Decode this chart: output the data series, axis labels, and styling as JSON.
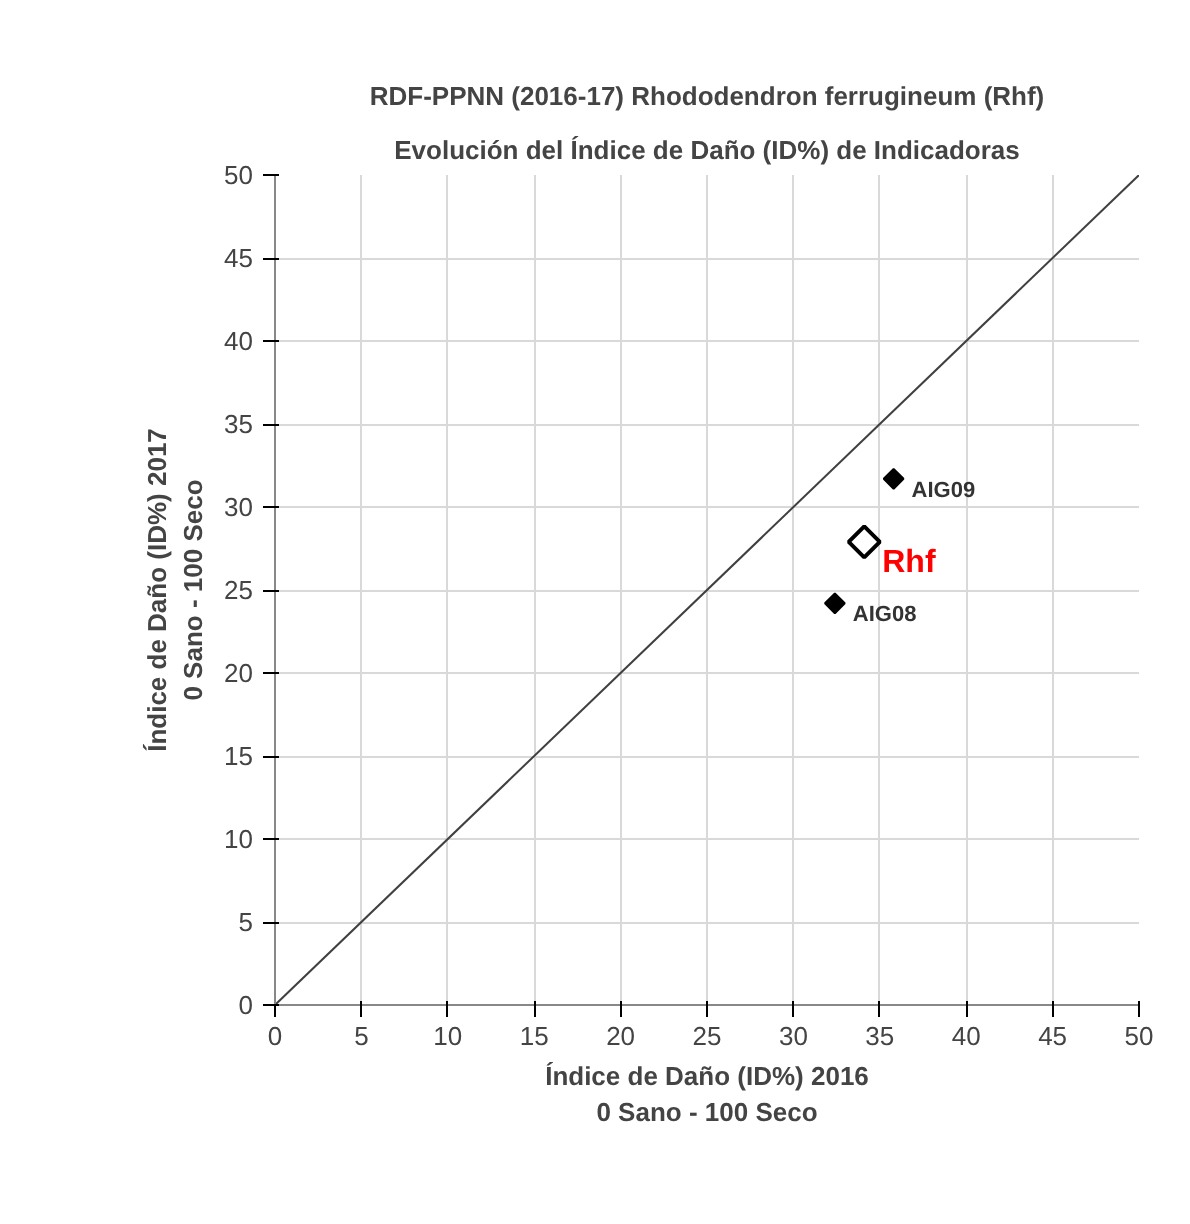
{
  "chart_data": {
    "type": "scatter",
    "title": "RDF-PPNN (2016-17) Rhododendron ferrugineum (Rhf)",
    "subtitle": "Evolución del Índice de Daño (ID%) de Indicadoras",
    "xlabel": "Índice de Daño (ID%) 2016\n0 Sano - 100 Seco",
    "ylabel": "Índice de Daño (ID%) 2017\n0 Sano - 100 Seco",
    "xlim": [
      0,
      50
    ],
    "ylim": [
      0,
      50
    ],
    "xticks": [
      0,
      5,
      10,
      15,
      20,
      25,
      30,
      35,
      40,
      45,
      50
    ],
    "yticks": [
      0,
      5,
      10,
      15,
      20,
      25,
      30,
      35,
      40,
      45,
      50
    ],
    "grid": true,
    "series": [
      {
        "type": "line",
        "marker": "none",
        "color": "#404040",
        "x": [
          0,
          50
        ],
        "values": [
          0,
          50
        ]
      },
      {
        "name": "AIG09",
        "marker": "diamond",
        "color": "#000000",
        "x": [
          35.8
        ],
        "values": [
          31.7
        ]
      },
      {
        "name": "AIG08",
        "marker": "diamond",
        "color": "#000000",
        "x": [
          32.4
        ],
        "values": [
          24.2
        ]
      },
      {
        "name": "Rhf",
        "marker": "diamond",
        "color": "#ffffff",
        "x": [
          34.1
        ],
        "values": [
          27.9
        ]
      }
    ]
  }
}
